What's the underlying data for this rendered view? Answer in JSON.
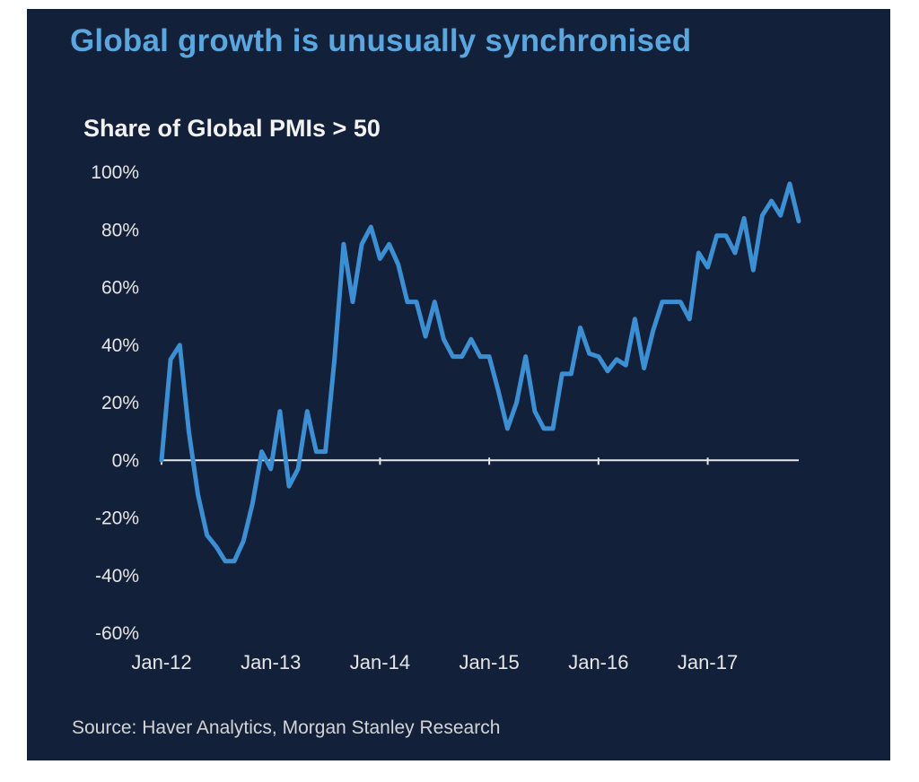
{
  "header": {
    "title": "Global growth is unusually synchronised"
  },
  "footer": {
    "source": "Source: Haver Analytics, Morgan Stanley Research"
  },
  "colors": {
    "background": "#13203a",
    "title": "#5aa6de",
    "series_line": "#3c8fd3",
    "zero_line": "#e8e8e8",
    "text": "#e6e6e6"
  },
  "chart_data": {
    "type": "line",
    "title": "Share of Global PMIs > 50",
    "xlabel": "",
    "ylabel": "",
    "ylim": [
      -60,
      100
    ],
    "yticks": [
      100,
      80,
      60,
      40,
      20,
      0,
      -20,
      -40,
      -60
    ],
    "ytick_labels": [
      "100%",
      "80%",
      "60%",
      "40%",
      "20%",
      "0%",
      "-20%",
      "-40%",
      "-60%"
    ],
    "xlim": [
      "Jan-12",
      "Nov-17"
    ],
    "xtick_labels": [
      "Jan-12",
      "Jan-13",
      "Jan-14",
      "Jan-15",
      "Jan-16",
      "Jan-17"
    ],
    "xtick_dates": [
      "2012-01",
      "2013-01",
      "2014-01",
      "2015-01",
      "2016-01",
      "2017-01"
    ],
    "grid": false,
    "zero_line": true,
    "series": [
      {
        "x": [
          "2012-01",
          "2012-02",
          "2012-03",
          "2012-04",
          "2012-05",
          "2012-06",
          "2012-07",
          "2012-08",
          "2012-09",
          "2012-10",
          "2012-11",
          "2012-12",
          "2013-01",
          "2013-02",
          "2013-03",
          "2013-04",
          "2013-05",
          "2013-06",
          "2013-07",
          "2013-08",
          "2013-09",
          "2013-10",
          "2013-11",
          "2013-12",
          "2014-01",
          "2014-02",
          "2014-03",
          "2014-04",
          "2014-05",
          "2014-06",
          "2014-07",
          "2014-08",
          "2014-09",
          "2014-10",
          "2014-11",
          "2014-12",
          "2015-01",
          "2015-02",
          "2015-03",
          "2015-04",
          "2015-05",
          "2015-06",
          "2015-07",
          "2015-08",
          "2015-09",
          "2015-10",
          "2015-11",
          "2015-12",
          "2016-01",
          "2016-02",
          "2016-03",
          "2016-04",
          "2016-05",
          "2016-06",
          "2016-07",
          "2016-08",
          "2016-09",
          "2016-10",
          "2016-11",
          "2016-12",
          "2017-01",
          "2017-02",
          "2017-03",
          "2017-04",
          "2017-05",
          "2017-06",
          "2017-07",
          "2017-08",
          "2017-09",
          "2017-10",
          "2017-11"
        ],
        "values": [
          0,
          35,
          40,
          10,
          -12,
          -26,
          -30,
          -35,
          -35,
          -28,
          -15,
          3,
          -3,
          17,
          -9,
          -3,
          17,
          3,
          3,
          35,
          75,
          55,
          75,
          81,
          70,
          75,
          68,
          55,
          55,
          43,
          55,
          42,
          36,
          36,
          42,
          36,
          36,
          24,
          11,
          20,
          36,
          17,
          11,
          11,
          30,
          30,
          46,
          37,
          36,
          31,
          35,
          33,
          49,
          32,
          45,
          55,
          55,
          55,
          49,
          72,
          67,
          78,
          78,
          72,
          84,
          66,
          85,
          90,
          85,
          96,
          83
        ]
      }
    ]
  }
}
